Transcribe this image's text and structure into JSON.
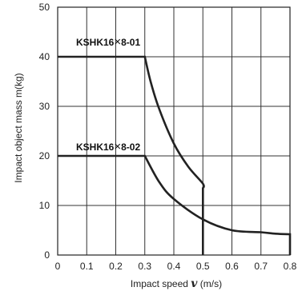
{
  "chart_data": {
    "type": "line",
    "title": "",
    "xlabel_main": "Impact speed ",
    "xlabel_var": "v",
    "xlabel_unit": " (m/s)",
    "ylabel": "Impact object mass m(kg)",
    "xlim": [
      0,
      0.8
    ],
    "ylim": [
      0,
      50
    ],
    "x_ticks": [
      "0",
      "0.1",
      "0.2",
      "0.3",
      "0.4",
      "0.5",
      "0.6",
      "0.7",
      "0.8"
    ],
    "y_ticks": [
      "0",
      "10",
      "20",
      "30",
      "40",
      "50"
    ],
    "grid": true,
    "series": [
      {
        "name": "KSHK16×8-01",
        "label_prefix": "KSHK16",
        "label_cross": "×",
        "label_suffix": "8-01",
        "points": [
          [
            0,
            40
          ],
          [
            0.3,
            40
          ],
          [
            0.32,
            35
          ],
          [
            0.35,
            29.4
          ],
          [
            0.4,
            22.5
          ],
          [
            0.45,
            17.8
          ],
          [
            0.5,
            14.4
          ],
          [
            0.5,
            13.5
          ],
          [
            0.5,
            0
          ]
        ]
      },
      {
        "name": "KSHK16×8-02",
        "label_prefix": "KSHK16",
        "label_cross": "×",
        "label_suffix": "8-02",
        "points": [
          [
            0,
            20
          ],
          [
            0.3,
            20
          ],
          [
            0.35,
            14.7
          ],
          [
            0.4,
            11.3
          ],
          [
            0.5,
            7.2
          ],
          [
            0.6,
            5.0
          ],
          [
            0.7,
            4.6
          ],
          [
            0.75,
            4.3
          ],
          [
            0.8,
            4.2
          ],
          [
            0.8,
            0
          ]
        ]
      }
    ]
  }
}
